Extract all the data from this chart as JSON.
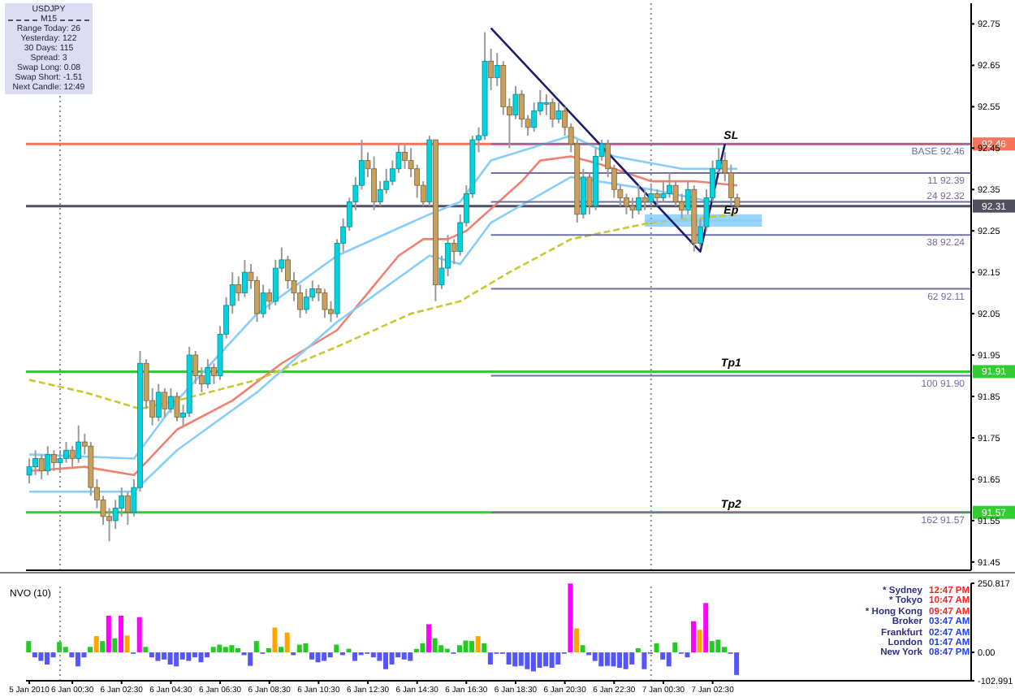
{
  "chart_data": [
    {
      "type": "candlestick",
      "xlim": [
        "2010-01-05T22:37",
        "2010-01-07T13:00"
      ],
      "ylim": [
        91.43,
        92.8
      ],
      "yticks": [
        92.75,
        92.65,
        92.55,
        92.45,
        92.35,
        92.25,
        92.15,
        92.05,
        91.95,
        91.85,
        91.75,
        91.65,
        91.55,
        91.45
      ],
      "tick_labels": "y",
      "x": [
        "2010-01-05T22:45",
        "2010-01-05T23:00",
        "2010-01-05T23:15",
        "2010-01-05T23:30",
        "2010-01-05T23:45",
        "2010-01-06T00:00",
        "2010-01-06T00:15",
        "2010-01-06T00:30",
        "2010-01-06T00:45",
        "2010-01-06T01:00",
        "2010-01-06T01:15",
        "2010-01-06T01:30",
        "2010-01-06T01:45",
        "2010-01-06T02:00",
        "2010-01-06T02:15",
        "2010-01-06T02:30",
        "2010-01-06T02:45",
        "2010-01-06T03:00",
        "2010-01-06T03:15",
        "2010-01-06T03:30",
        "2010-01-06T03:45",
        "2010-01-06T04:00",
        "2010-01-06T04:15",
        "2010-01-06T04:30",
        "2010-01-06T04:45",
        "2010-01-06T05:00",
        "2010-01-06T05:15",
        "2010-01-06T05:30",
        "2010-01-06T05:45",
        "2010-01-06T06:00",
        "2010-01-06T06:15",
        "2010-01-06T06:30",
        "2010-01-06T06:45",
        "2010-01-06T07:00",
        "2010-01-06T07:15",
        "2010-01-06T07:30",
        "2010-01-06T07:45",
        "2010-01-06T08:00",
        "2010-01-06T08:15",
        "2010-01-06T08:30",
        "2010-01-06T08:45",
        "2010-01-06T09:00",
        "2010-01-06T09:15",
        "2010-01-06T09:30",
        "2010-01-06T09:45",
        "2010-01-06T10:00",
        "2010-01-06T10:15",
        "2010-01-06T10:30",
        "2010-01-06T10:45",
        "2010-01-06T11:00",
        "2010-01-06T11:15",
        "2010-01-06T11:30",
        "2010-01-06T11:45",
        "2010-01-06T12:00",
        "2010-01-06T12:15",
        "2010-01-06T12:30",
        "2010-01-06T12:45",
        "2010-01-06T13:00",
        "2010-01-06T13:15",
        "2010-01-06T13:30",
        "2010-01-06T13:45",
        "2010-01-06T14:00",
        "2010-01-06T14:15",
        "2010-01-06T14:30",
        "2010-01-06T14:45",
        "2010-01-06T15:00",
        "2010-01-06T15:15",
        "2010-01-06T15:30",
        "2010-01-06T15:45",
        "2010-01-06T16:00",
        "2010-01-06T16:15",
        "2010-01-06T16:30",
        "2010-01-06T16:45",
        "2010-01-06T17:00",
        "2010-01-06T17:15",
        "2010-01-06T17:30",
        "2010-01-06T17:45",
        "2010-01-06T18:00",
        "2010-01-06T18:15",
        "2010-01-06T18:30",
        "2010-01-06T18:45",
        "2010-01-06T19:00",
        "2010-01-06T19:15",
        "2010-01-06T19:30",
        "2010-01-06T19:45",
        "2010-01-06T20:00",
        "2010-01-06T20:15",
        "2010-01-06T20:30",
        "2010-01-06T20:45",
        "2010-01-06T21:00",
        "2010-01-06T21:15",
        "2010-01-06T21:30",
        "2010-01-06T21:45",
        "2010-01-06T22:00",
        "2010-01-06T22:15",
        "2010-01-06T22:30",
        "2010-01-06T22:45",
        "2010-01-06T23:00",
        "2010-01-06T23:15",
        "2010-01-06T23:30",
        "2010-01-06T23:45",
        "2010-01-07T00:00",
        "2010-01-07T00:15",
        "2010-01-07T00:30",
        "2010-01-07T00:45",
        "2010-01-07T01:00",
        "2010-01-07T01:15",
        "2010-01-07T01:30",
        "2010-01-07T01:45",
        "2010-01-07T02:00",
        "2010-01-07T02:15",
        "2010-01-07T02:30",
        "2010-01-07T02:45",
        "2010-01-07T03:00",
        "2010-01-07T03:15",
        "2010-01-07T03:30"
      ],
      "ohlc": [
        [
          91.66,
          91.7,
          91.64,
          91.68
        ],
        [
          91.68,
          91.72,
          91.66,
          91.7
        ],
        [
          91.7,
          91.71,
          91.65,
          91.67
        ],
        [
          91.67,
          91.73,
          91.66,
          91.71
        ],
        [
          91.71,
          91.72,
          91.67,
          91.69
        ],
        [
          91.69,
          91.72,
          91.67,
          91.7
        ],
        [
          91.7,
          91.74,
          91.69,
          91.72
        ],
        [
          91.72,
          91.73,
          91.68,
          91.7
        ],
        [
          91.7,
          91.78,
          91.69,
          91.74
        ],
        [
          91.74,
          91.76,
          91.71,
          91.73
        ],
        [
          91.73,
          91.74,
          91.61,
          91.63
        ],
        [
          91.63,
          91.65,
          91.58,
          91.6
        ],
        [
          91.6,
          91.61,
          91.54,
          91.56
        ],
        [
          91.56,
          91.58,
          91.5,
          91.55
        ],
        [
          91.55,
          91.6,
          91.53,
          91.58
        ],
        [
          91.58,
          91.63,
          91.56,
          91.61
        ],
        [
          91.61,
          91.62,
          91.54,
          91.57
        ],
        [
          91.57,
          91.65,
          91.56,
          91.63
        ],
        [
          91.63,
          91.96,
          91.62,
          91.93
        ],
        [
          91.93,
          91.94,
          91.82,
          91.84
        ],
        [
          91.84,
          91.87,
          91.78,
          91.8
        ],
        [
          91.8,
          91.88,
          91.79,
          91.86
        ],
        [
          91.86,
          91.87,
          91.8,
          91.82
        ],
        [
          91.82,
          91.87,
          91.81,
          91.85
        ],
        [
          91.85,
          91.86,
          91.79,
          91.8
        ],
        [
          91.8,
          91.83,
          91.78,
          91.81
        ],
        [
          91.81,
          91.97,
          91.8,
          91.95
        ],
        [
          91.95,
          91.96,
          91.88,
          91.9
        ],
        [
          91.9,
          91.92,
          91.86,
          91.88
        ],
        [
          91.88,
          91.94,
          91.87,
          91.92
        ],
        [
          91.92,
          91.93,
          91.88,
          91.9
        ],
        [
          91.9,
          92.02,
          91.89,
          92.0
        ],
        [
          92.0,
          92.09,
          91.99,
          92.07
        ],
        [
          92.07,
          92.15,
          92.05,
          92.12
        ],
        [
          92.12,
          92.14,
          92.08,
          92.1
        ],
        [
          92.1,
          92.18,
          92.09,
          92.15
        ],
        [
          92.15,
          92.17,
          92.11,
          92.13
        ],
        [
          92.13,
          92.14,
          92.03,
          92.05
        ],
        [
          92.05,
          92.12,
          92.04,
          92.1
        ],
        [
          92.1,
          92.11,
          92.06,
          92.08
        ],
        [
          92.08,
          92.18,
          92.07,
          92.16
        ],
        [
          92.16,
          92.21,
          92.15,
          92.18
        ],
        [
          92.18,
          92.19,
          92.11,
          92.13
        ],
        [
          92.13,
          92.15,
          92.08,
          92.1
        ],
        [
          92.1,
          92.12,
          92.04,
          92.06
        ],
        [
          92.06,
          92.11,
          92.05,
          92.09
        ],
        [
          92.09,
          92.13,
          92.08,
          92.11
        ],
        [
          92.11,
          92.12,
          92.08,
          92.1
        ],
        [
          92.1,
          92.11,
          92.04,
          92.06
        ],
        [
          92.06,
          92.08,
          92.03,
          92.05
        ],
        [
          92.05,
          92.23,
          92.04,
          92.22
        ],
        [
          92.22,
          92.28,
          92.2,
          92.26
        ],
        [
          92.26,
          92.33,
          92.25,
          92.32
        ],
        [
          92.32,
          92.38,
          92.3,
          92.36
        ],
        [
          92.36,
          92.47,
          92.35,
          92.42
        ],
        [
          92.42,
          92.44,
          92.38,
          92.4
        ],
        [
          92.4,
          92.43,
          92.3,
          92.32
        ],
        [
          92.32,
          92.37,
          92.31,
          92.35
        ],
        [
          92.35,
          92.4,
          92.34,
          92.37
        ],
        [
          92.37,
          92.42,
          92.36,
          92.4
        ],
        [
          92.4,
          92.46,
          92.39,
          92.44
        ],
        [
          92.44,
          92.46,
          92.4,
          92.42
        ],
        [
          92.42,
          92.45,
          92.38,
          92.4
        ],
        [
          92.4,
          92.41,
          92.33,
          92.36
        ],
        [
          92.36,
          92.37,
          92.31,
          92.32
        ],
        [
          92.32,
          92.48,
          92.31,
          92.47
        ],
        [
          92.47,
          92.47,
          92.08,
          92.12
        ],
        [
          92.12,
          92.19,
          92.11,
          92.16
        ],
        [
          92.16,
          92.24,
          92.14,
          92.22
        ],
        [
          92.22,
          92.23,
          92.17,
          92.2
        ],
        [
          92.2,
          92.29,
          92.19,
          92.27
        ],
        [
          92.27,
          92.36,
          92.26,
          92.34
        ],
        [
          92.34,
          92.48,
          92.33,
          92.47
        ],
        [
          92.47,
          92.5,
          92.44,
          92.48
        ],
        [
          92.48,
          92.73,
          92.47,
          92.66
        ],
        [
          92.66,
          92.69,
          92.59,
          92.62
        ],
        [
          92.62,
          92.68,
          92.6,
          92.65
        ],
        [
          92.65,
          92.66,
          92.53,
          92.55
        ],
        [
          92.55,
          92.57,
          92.45,
          92.53
        ],
        [
          92.53,
          92.6,
          92.52,
          92.58
        ],
        [
          92.58,
          92.59,
          92.5,
          92.52
        ],
        [
          92.52,
          92.53,
          92.48,
          92.5
        ],
        [
          92.5,
          92.56,
          92.49,
          92.54
        ],
        [
          92.54,
          92.59,
          92.53,
          92.56
        ],
        [
          92.56,
          92.58,
          92.53,
          92.56
        ],
        [
          92.56,
          92.57,
          92.5,
          92.52
        ],
        [
          92.52,
          92.56,
          92.51,
          92.54
        ],
        [
          92.54,
          92.55,
          92.48,
          92.5
        ],
        [
          92.5,
          92.51,
          92.44,
          92.46
        ],
        [
          92.46,
          92.47,
          92.27,
          92.29
        ],
        [
          92.29,
          92.4,
          92.28,
          92.38
        ],
        [
          92.38,
          92.39,
          92.29,
          92.31
        ],
        [
          92.31,
          92.45,
          92.3,
          92.43
        ],
        [
          92.43,
          92.47,
          92.42,
          92.46
        ],
        [
          92.46,
          92.47,
          92.38,
          92.4
        ],
        [
          92.4,
          92.41,
          92.33,
          92.35
        ],
        [
          92.35,
          92.36,
          92.31,
          92.33
        ],
        [
          92.33,
          92.34,
          92.29,
          92.31
        ],
        [
          92.31,
          92.33,
          92.28,
          92.3
        ],
        [
          92.3,
          92.36,
          92.29,
          92.33
        ],
        [
          92.33,
          92.35,
          92.3,
          92.32
        ],
        [
          92.32,
          92.36,
          92.31,
          92.34
        ],
        [
          92.34,
          92.35,
          92.31,
          92.33
        ],
        [
          92.33,
          92.37,
          92.32,
          92.34
        ],
        [
          92.34,
          92.39,
          92.33,
          92.36
        ],
        [
          92.36,
          92.37,
          92.31,
          92.32
        ],
        [
          92.32,
          92.34,
          92.28,
          92.3
        ],
        [
          92.3,
          92.37,
          92.29,
          92.35
        ],
        [
          92.35,
          92.36,
          92.2,
          92.22
        ],
        [
          92.22,
          92.28,
          92.21,
          92.26
        ],
        [
          92.26,
          92.35,
          92.25,
          92.33
        ],
        [
          92.33,
          92.42,
          92.32,
          92.4
        ],
        [
          92.4,
          92.45,
          92.39,
          92.42
        ],
        [
          92.42,
          92.44,
          92.37,
          92.39
        ],
        [
          92.39,
          92.41,
          92.31,
          92.33
        ],
        [
          92.33,
          92.34,
          92.3,
          92.31
        ]
      ],
      "series": [
        {
          "type": "line",
          "color": "#87cefa",
          "x": [
            "2010-01-05T22:45",
            "2010-01-06T03:00",
            "2010-01-06T04:45",
            "2010-01-06T08:00",
            "2010-01-06T11:15",
            "2010-01-06T15:00",
            "2010-01-06T16:15",
            "2010-01-06T17:30",
            "2010-01-06T20:45",
            "2010-01-06T22:30",
            "2010-01-07T01:15",
            "2010-01-07T03:30"
          ],
          "values": [
            91.71,
            91.7,
            91.84,
            92.05,
            92.19,
            92.29,
            92.32,
            92.42,
            92.48,
            92.43,
            92.4,
            92.4
          ]
        },
        {
          "type": "line",
          "color": "#f08070",
          "x": [
            "2010-01-05T22:45",
            "2010-01-06T01:00",
            "2010-01-06T03:00",
            "2010-01-06T04:45",
            "2010-01-06T07:00",
            "2010-01-06T09:00",
            "2010-01-06T11:15",
            "2010-01-06T12:30",
            "2010-01-06T13:45",
            "2010-01-06T14:45",
            "2010-01-06T15:45",
            "2010-01-06T16:30",
            "2010-01-06T18:45",
            "2010-01-06T19:30",
            "2010-01-06T20:45",
            "2010-01-06T22:00",
            "2010-01-07T00:00",
            "2010-01-07T01:45",
            "2010-01-07T03:30"
          ],
          "values": [
            91.67,
            91.68,
            91.66,
            91.77,
            91.84,
            91.93,
            92.01,
            92.1,
            92.19,
            92.23,
            92.23,
            92.25,
            92.37,
            92.42,
            92.43,
            92.41,
            92.37,
            92.37,
            92.36
          ]
        },
        {
          "type": "line",
          "color": "#87cefa",
          "x": [
            "2010-01-05T22:45",
            "2010-01-06T03:00",
            "2010-01-06T04:45",
            "2010-01-06T08:00",
            "2010-01-06T11:15",
            "2010-01-06T15:00",
            "2010-01-06T16:15",
            "2010-01-06T17:30",
            "2010-01-06T20:45",
            "2010-01-07T00:00",
            "2010-01-07T02:30",
            "2010-01-07T03:30"
          ],
          "values": [
            91.62,
            91.62,
            91.72,
            91.86,
            92.03,
            92.19,
            92.17,
            92.27,
            92.38,
            92.35,
            92.32,
            92.32
          ]
        },
        {
          "type": "line",
          "color": "#c8c832",
          "line_style": "dashed",
          "x": [
            "2010-01-05T22:45",
            "2010-01-06T01:00",
            "2010-01-06T03:15",
            "2010-01-06T04:45",
            "2010-01-06T08:00",
            "2010-01-06T11:15",
            "2010-01-06T14:15",
            "2010-01-06T16:15",
            "2010-01-06T18:15",
            "2010-01-06T20:45",
            "2010-01-07T00:00",
            "2010-01-07T03:30"
          ],
          "values": [
            91.89,
            91.86,
            91.82,
            91.84,
            91.89,
            91.97,
            92.05,
            92.08,
            92.15,
            92.23,
            92.27,
            92.29
          ]
        },
        {
          "type": "line",
          "color": "#87cefa",
          "x": [
            "2010-01-06T23:45",
            "2010-01-07T04:30"
          ],
          "values": [
            92.275,
            92.275
          ],
          "lower": [
            92.26,
            92.26
          ],
          "upper": [
            92.29,
            92.29
          ]
        },
        {
          "type": "line",
          "name": "BASE 92.46",
          "color": "#7070a0",
          "x": [
            "2010-01-06T17:30",
            "2010-01-07T13:00"
          ],
          "values": [
            92.46,
            92.46
          ]
        },
        {
          "type": "line",
          "name": "11 92.39",
          "color": "#7070a0",
          "x": [
            "2010-01-06T17:30",
            "2010-01-07T13:00"
          ],
          "values": [
            92.39,
            92.39
          ]
        },
        {
          "type": "line",
          "name": "24 92.32",
          "color": "#7070a0",
          "x": [
            "2010-01-06T17:30",
            "2010-01-07T13:00"
          ],
          "values": [
            92.32,
            92.32
          ]
        },
        {
          "type": "line",
          "name": "38 92.24",
          "color": "#7070a0",
          "x": [
            "2010-01-06T17:30",
            "2010-01-07T13:00"
          ],
          "values": [
            92.24,
            92.24
          ]
        },
        {
          "type": "line",
          "name": "62 92.11",
          "color": "#7070a0",
          "x": [
            "2010-01-06T17:30",
            "2010-01-07T13:00"
          ],
          "values": [
            92.11,
            92.11
          ]
        },
        {
          "type": "line",
          "name": "100 91.90",
          "color": "#7070a0",
          "x": [
            "2010-01-06T17:30",
            "2010-01-07T13:00"
          ],
          "values": [
            91.9,
            91.9
          ]
        },
        {
          "type": "line",
          "name": "162 91.57",
          "color": "#7070a0",
          "x": [
            "2010-01-06T17:30",
            "2010-01-07T13:00"
          ],
          "values": [
            91.57,
            91.57
          ]
        },
        {
          "type": "line",
          "color": "#1c1c6e",
          "x": [
            "2010-01-06T17:30",
            "2010-01-07T02:00",
            "2010-01-07T03:00"
          ],
          "values": [
            92.74,
            92.2,
            92.46
          ]
        }
      ],
      "ref_lines": [
        {
          "axis": "y",
          "value": 92.46,
          "label": "92.46",
          "color": "#f4735a"
        },
        {
          "axis": "y",
          "value": 92.31,
          "label": "92.31",
          "color": "#505060"
        },
        {
          "axis": "y",
          "value": 91.91,
          "label": "91.91",
          "color": "#33cc33"
        },
        {
          "axis": "y",
          "value": 91.57,
          "label": "91.57",
          "color": "#33cc33"
        },
        {
          "axis": "x",
          "value": "2010-01-06T00:00",
          "color": "#909090",
          "line_style": "dotted"
        },
        {
          "axis": "x",
          "value": "2010-01-07T00:00",
          "color": "#909090",
          "line_style": "dotted"
        }
      ],
      "annotations": [
        {
          "text": "SL",
          "x": "2010-01-07T03:15",
          "y": 92.46
        },
        {
          "text": "Ep",
          "x": "2010-01-07T03:15",
          "y": 92.28
        },
        {
          "text": "Tp1",
          "x": "2010-01-07T03:15",
          "y": 91.91
        },
        {
          "text": "Tp2",
          "x": "2010-01-07T03:15",
          "y": 91.57
        }
      ]
    },
    {
      "type": "bar",
      "title": "NVO (10)",
      "xlim": [
        "2010-01-05T22:37",
        "2010-01-07T13:00"
      ],
      "ylim": [
        -102.991,
        250.817
      ],
      "yticks": [
        250.817,
        {
          "value": 0,
          "label": "0.00"
        },
        -102.991
      ],
      "xticks": [
        {
          "value": "2010-01-05T22:45",
          "label": "5 Jan 2010"
        },
        {
          "value": "2010-01-06T00:30",
          "label": "6 Jan 00:30"
        },
        {
          "value": "2010-01-06T02:30",
          "label": "6 Jan 02:30"
        },
        {
          "value": "2010-01-06T04:30",
          "label": "6 Jan 04:30"
        },
        {
          "value": "2010-01-06T06:30",
          "label": "6 Jan 06:30"
        },
        {
          "value": "2010-01-06T08:30",
          "label": "6 Jan 08:30"
        },
        {
          "value": "2010-01-06T10:30",
          "label": "6 Jan 10:30"
        },
        {
          "value": "2010-01-06T12:30",
          "label": "6 Jan 12:30"
        },
        {
          "value": "2010-01-06T14:30",
          "label": "6 Jan 14:30"
        },
        {
          "value": "2010-01-06T16:30",
          "label": "6 Jan 16:30"
        },
        {
          "value": "2010-01-06T18:30",
          "label": "6 Jan 18:30"
        },
        {
          "value": "2010-01-06T20:30",
          "label": "6 Jan 20:30"
        },
        {
          "value": "2010-01-06T22:30",
          "label": "6 Jan 22:30"
        },
        {
          "value": "2010-01-07T00:30",
          "label": "7 Jan 00:30"
        },
        {
          "value": "2010-01-07T02:30",
          "label": "7 Jan 02:30"
        }
      ],
      "x": [
        "2010-01-05T22:45",
        "2010-01-05T23:00",
        "2010-01-05T23:15",
        "2010-01-05T23:30",
        "2010-01-05T23:45",
        "2010-01-06T00:00",
        "2010-01-06T00:15",
        "2010-01-06T00:30",
        "2010-01-06T00:45",
        "2010-01-06T01:00",
        "2010-01-06T01:15",
        "2010-01-06T01:30",
        "2010-01-06T01:45",
        "2010-01-06T02:00",
        "2010-01-06T02:15",
        "2010-01-06T02:30",
        "2010-01-06T02:45",
        "2010-01-06T03:00",
        "2010-01-06T03:15",
        "2010-01-06T03:30",
        "2010-01-06T03:45",
        "2010-01-06T04:00",
        "2010-01-06T04:15",
        "2010-01-06T04:30",
        "2010-01-06T04:45",
        "2010-01-06T05:00",
        "2010-01-06T05:15",
        "2010-01-06T05:30",
        "2010-01-06T05:45",
        "2010-01-06T06:00",
        "2010-01-06T06:15",
        "2010-01-06T06:30",
        "2010-01-06T06:45",
        "2010-01-06T07:00",
        "2010-01-06T07:15",
        "2010-01-06T07:30",
        "2010-01-06T07:45",
        "2010-01-06T08:00",
        "2010-01-06T08:15",
        "2010-01-06T08:30",
        "2010-01-06T08:45",
        "2010-01-06T09:00",
        "2010-01-06T09:15",
        "2010-01-06T09:30",
        "2010-01-06T09:45",
        "2010-01-06T10:00",
        "2010-01-06T10:15",
        "2010-01-06T10:30",
        "2010-01-06T10:45",
        "2010-01-06T11:00",
        "2010-01-06T11:15",
        "2010-01-06T11:30",
        "2010-01-06T11:45",
        "2010-01-06T12:00",
        "2010-01-06T12:15",
        "2010-01-06T12:30",
        "2010-01-06T12:45",
        "2010-01-06T13:00",
        "2010-01-06T13:15",
        "2010-01-06T13:30",
        "2010-01-06T13:45",
        "2010-01-06T14:00",
        "2010-01-06T14:15",
        "2010-01-06T14:30",
        "2010-01-06T14:45",
        "2010-01-06T15:00",
        "2010-01-06T15:15",
        "2010-01-06T15:30",
        "2010-01-06T15:45",
        "2010-01-06T16:00",
        "2010-01-06T16:15",
        "2010-01-06T16:30",
        "2010-01-06T16:45",
        "2010-01-06T17:00",
        "2010-01-06T17:15",
        "2010-01-06T17:30",
        "2010-01-06T17:45",
        "2010-01-06T18:00",
        "2010-01-06T18:15",
        "2010-01-06T18:30",
        "2010-01-06T18:45",
        "2010-01-06T19:00",
        "2010-01-06T19:15",
        "2010-01-06T19:30",
        "2010-01-06T19:45",
        "2010-01-06T20:00",
        "2010-01-06T20:15",
        "2010-01-06T20:30",
        "2010-01-06T20:45",
        "2010-01-06T21:00",
        "2010-01-06T21:15",
        "2010-01-06T21:30",
        "2010-01-06T21:45",
        "2010-01-06T22:00",
        "2010-01-06T22:15",
        "2010-01-06T22:30",
        "2010-01-06T22:45",
        "2010-01-06T23:00",
        "2010-01-06T23:15",
        "2010-01-06T23:30",
        "2010-01-06T23:45",
        "2010-01-07T00:00",
        "2010-01-07T00:15",
        "2010-01-07T00:30",
        "2010-01-07T00:45",
        "2010-01-07T01:00",
        "2010-01-07T01:15",
        "2010-01-07T01:30",
        "2010-01-07T01:45",
        "2010-01-07T02:00",
        "2010-01-07T02:15",
        "2010-01-07T02:30",
        "2010-01-07T02:45",
        "2010-01-07T03:00",
        "2010-01-07T03:15",
        "2010-01-07T03:30"
      ],
      "values": [
        41,
        -18,
        -31,
        -44,
        -18,
        38,
        20,
        -18,
        -51,
        -18,
        20,
        59,
        41,
        133,
        51,
        133,
        61,
        -5,
        128,
        20,
        -18,
        -31,
        -26,
        -44,
        -51,
        -26,
        -31,
        -18,
        -36,
        -18,
        20,
        28,
        20,
        26,
        15,
        -10,
        -49,
        41,
        -5,
        15,
        90,
        20,
        72,
        -10,
        28,
        33,
        -26,
        -36,
        -31,
        -18,
        28,
        -10,
        13,
        -31,
        -10,
        -5,
        -18,
        -31,
        -61,
        -44,
        -18,
        -26,
        -31,
        13,
        33,
        102,
        51,
        26,
        13,
        -5,
        26,
        43,
        41,
        59,
        33,
        -44,
        -5,
        -5,
        -44,
        -51,
        -49,
        -61,
        -69,
        -56,
        -51,
        -56,
        -44,
        -5,
        250,
        87,
        26,
        -10,
        -31,
        -51,
        -49,
        -51,
        -56,
        -61,
        -44,
        15,
        -61,
        -5,
        33,
        -26,
        -51,
        36,
        -5,
        -18,
        113,
        82,
        179,
        41,
        46,
        20,
        -5,
        -82
      ],
      "colors": [
        "#22cc22",
        "#5555ff",
        "#5555ff",
        "#5555ff",
        "#5555ff",
        "#22cc22",
        "#22cc22",
        "#5555ff",
        "#5555ff",
        "#5555ff",
        "#22cc22",
        "#ffa500",
        "#22cc22",
        "#ff00ff",
        "#22cc22",
        "#ff00ff",
        "#ffa500",
        "#5555ff",
        "#ff00ff",
        "#22cc22",
        "#5555ff",
        "#5555ff",
        "#5555ff",
        "#5555ff",
        "#5555ff",
        "#5555ff",
        "#5555ff",
        "#5555ff",
        "#5555ff",
        "#5555ff",
        "#22cc22",
        "#22cc22",
        "#22cc22",
        "#22cc22",
        "#22cc22",
        "#5555ff",
        "#5555ff",
        "#22cc22",
        "#5555ff",
        "#22cc22",
        "#ffa500",
        "#22cc22",
        "#ffa500",
        "#5555ff",
        "#22cc22",
        "#22cc22",
        "#5555ff",
        "#5555ff",
        "#5555ff",
        "#5555ff",
        "#22cc22",
        "#5555ff",
        "#22cc22",
        "#5555ff",
        "#5555ff",
        "#5555ff",
        "#5555ff",
        "#5555ff",
        "#5555ff",
        "#5555ff",
        "#5555ff",
        "#5555ff",
        "#5555ff",
        "#22cc22",
        "#22cc22",
        "#ff00ff",
        "#22cc22",
        "#22cc22",
        "#22cc22",
        "#5555ff",
        "#22cc22",
        "#22cc22",
        "#22cc22",
        "#ffa500",
        "#22cc22",
        "#5555ff",
        "#5555ff",
        "#5555ff",
        "#5555ff",
        "#5555ff",
        "#5555ff",
        "#5555ff",
        "#5555ff",
        "#5555ff",
        "#5555ff",
        "#5555ff",
        "#5555ff",
        "#5555ff",
        "#ff00ff",
        "#ffa500",
        "#22cc22",
        "#5555ff",
        "#5555ff",
        "#5555ff",
        "#5555ff",
        "#5555ff",
        "#5555ff",
        "#5555ff",
        "#5555ff",
        "#22cc22",
        "#5555ff",
        "#5555ff",
        "#22cc22",
        "#5555ff",
        "#5555ff",
        "#22cc22",
        "#5555ff",
        "#5555ff",
        "#ff00ff",
        "#ffa500",
        "#ff00ff",
        "#22cc22",
        "#22cc22",
        "#22cc22",
        "#5555ff",
        "#5555ff"
      ],
      "ref_lines": [
        {
          "axis": "x",
          "value": "2010-01-06T00:00",
          "color": "#909090",
          "line_style": "dotted"
        },
        {
          "axis": "x",
          "value": "2010-01-07T00:00",
          "color": "#909090",
          "line_style": "dotted"
        }
      ]
    },
    {
      "type": "other",
      "title": "USDJPY",
      "subtitle": "M15",
      "annotations": [
        "Range Today: 26",
        "Yesterday: 122",
        "30 Days: 115",
        "Spread: 3",
        "Swap Long: 0.08",
        "Swap Short: -1.51",
        "Next Candle: 12:49"
      ]
    },
    {
      "type": "other",
      "categories": [
        "* Sydney",
        "* Tokyo",
        "* Hong Kong",
        "Broker",
        "Frankfurt",
        "London",
        "New York"
      ],
      "value_labels": [
        "12:47 PM",
        "10:47 AM",
        "09:47 AM",
        "03:47 AM",
        "02:47 AM",
        "01:47 AM",
        "08:47 PM"
      ],
      "colors": [
        "#ff2020",
        "#ff2020",
        "#ff2020",
        "#2040ff",
        "#2040ff",
        "#2040ff",
        "#2040ff"
      ]
    }
  ]
}
